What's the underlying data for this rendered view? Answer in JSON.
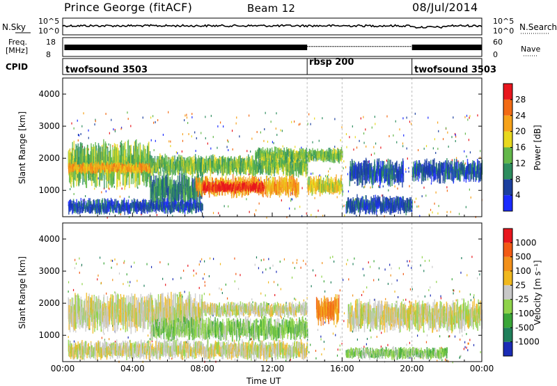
{
  "header": {
    "title": "Prince George (fitACF)",
    "beam": "Beam 12",
    "date": "08/Jul/2014"
  },
  "strips": {
    "nsky": {
      "label": "N.Sky",
      "tick_top": "10^5",
      "tick_bottom": "10^0",
      "right_label": "N.Search",
      "right_tick_top": "10^5",
      "right_tick_bottom": "10^0"
    },
    "freq": {
      "label_line1": "Freq.",
      "label_line2": "[MHz]",
      "tick_top": "18",
      "tick_bottom": "8",
      "right_label": "Nave",
      "right_tick_top": "60",
      "right_tick_bottom": "0"
    },
    "cpid": {
      "label": "CPID",
      "segments": [
        {
          "name": "twofsound 3503",
          "start_h": 0,
          "end_h": 14
        },
        {
          "name": "rbsp 200",
          "start_h": 14,
          "end_h": 20
        },
        {
          "name": "twofsound 3503",
          "start_h": 20,
          "end_h": 24
        }
      ]
    }
  },
  "chart_data": [
    {
      "type": "heatmap",
      "name": "power",
      "ylabel": "Slant Range [km]",
      "xlabel": "Time UT",
      "xlim": [
        0,
        24
      ],
      "ylim": [
        180,
        4500
      ],
      "xticks": [
        "00:00",
        "04:00",
        "08:00",
        "12:00",
        "16:00",
        "20:00",
        "00:00"
      ],
      "yticks": [
        1000,
        2000,
        3000,
        4000
      ],
      "colorbar": {
        "label": "Power [dB]",
        "ticks": [
          4,
          8,
          12,
          16,
          20,
          24,
          28
        ],
        "colors": [
          "#1a2bff",
          "#1b3f9e",
          "#2d8d5e",
          "#63b84a",
          "#e8d81e",
          "#f6a21a",
          "#f26a14",
          "#e8161d"
        ]
      },
      "bands": [
        {
          "t0": 0.3,
          "t1": 5,
          "r0": 1200,
          "r1": 2400,
          "level": 3
        },
        {
          "t0": 0.3,
          "t1": 5,
          "r0": 1550,
          "r1": 1850,
          "level": 5
        },
        {
          "t0": 5,
          "t1": 14,
          "r0": 1500,
          "r1": 2050,
          "level": 3
        },
        {
          "t0": 5,
          "t1": 8,
          "r0": 600,
          "r1": 1500,
          "level": 2
        },
        {
          "t0": 7.6,
          "t1": 13.5,
          "r0": 850,
          "r1": 1400,
          "level": 5
        },
        {
          "t0": 8,
          "t1": 11.5,
          "r0": 950,
          "r1": 1250,
          "level": 7
        },
        {
          "t0": 11,
          "t1": 16,
          "r0": 1900,
          "r1": 2300,
          "level": 3
        },
        {
          "t0": 14,
          "t1": 16,
          "r0": 900,
          "r1": 1400,
          "level": 4
        },
        {
          "t0": 16.2,
          "t1": 20,
          "r0": 300,
          "r1": 800,
          "level": 1
        },
        {
          "t0": 16.4,
          "t1": 19.5,
          "r0": 1200,
          "r1": 1900,
          "level": 1
        },
        {
          "t0": 20,
          "t1": 24,
          "r0": 1300,
          "r1": 1900,
          "level": 1
        },
        {
          "t0": 0.3,
          "t1": 8,
          "r0": 300,
          "r1": 700,
          "level": 1
        }
      ]
    },
    {
      "type": "heatmap",
      "name": "velocity",
      "ylabel": "Slant Range [km]",
      "xlabel": "Time UT",
      "xlim": [
        0,
        24
      ],
      "ylim": [
        180,
        4500
      ],
      "xticks": [
        "00:00",
        "04:00",
        "08:00",
        "12:00",
        "16:00",
        "20:00",
        "00:00"
      ],
      "yticks": [
        1000,
        2000,
        3000,
        4000
      ],
      "colorbar": {
        "label": "Velocity [m s⁻¹]",
        "ticks": [
          1000,
          500,
          100,
          25,
          -25,
          -100,
          -500,
          -1000
        ],
        "colors": [
          "#1a2bb5",
          "#1f7f5a",
          "#3aa638",
          "#8fd34a",
          "#c8c8c8",
          "#f0b81e",
          "#f2901a",
          "#f25a14",
          "#e8161d"
        ]
      },
      "bands": [
        {
          "t0": 0.3,
          "t1": 8,
          "r0": 1200,
          "r1": 2200,
          "level": 4
        },
        {
          "t0": 5,
          "t1": 14,
          "r0": 900,
          "r1": 1500,
          "level": 3
        },
        {
          "t0": 8,
          "t1": 14,
          "r0": 1600,
          "r1": 2000,
          "level": 4
        },
        {
          "t0": 14.5,
          "t1": 15.8,
          "r0": 1400,
          "r1": 2200,
          "level": 6
        },
        {
          "t0": 16.3,
          "t1": 24,
          "r0": 1200,
          "r1": 2000,
          "level": 4
        },
        {
          "t0": 0.3,
          "t1": 14,
          "r0": 300,
          "r1": 800,
          "level": 4
        },
        {
          "t0": 16.2,
          "t1": 22,
          "r0": 280,
          "r1": 600,
          "level": 3
        }
      ]
    }
  ]
}
